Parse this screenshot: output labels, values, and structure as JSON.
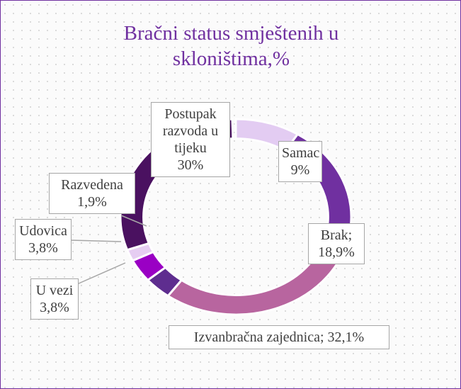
{
  "chart_data": {
    "type": "donut",
    "title": "Bračni status smještenih u skloništima,%",
    "categories": [
      "Samac",
      "Brak;",
      "Izvanbračna zajednica;",
      "U vezi",
      "Udovica",
      "Razvedena",
      "Postupak razvoda u tijeku"
    ],
    "values": [
      9,
      18.9,
      32.1,
      3.8,
      3.8,
      1.9,
      30
    ],
    "value_labels": [
      "9%",
      "18,9%",
      "32,1%",
      "3,8%",
      "3,8%",
      "1,9%",
      "30%"
    ],
    "colors": [
      "#e3ccf2",
      "#7030a0",
      "#b8659f",
      "#5e2d8f",
      "#9a00c4",
      "#e6cdf2",
      "#4a1160"
    ]
  }
}
